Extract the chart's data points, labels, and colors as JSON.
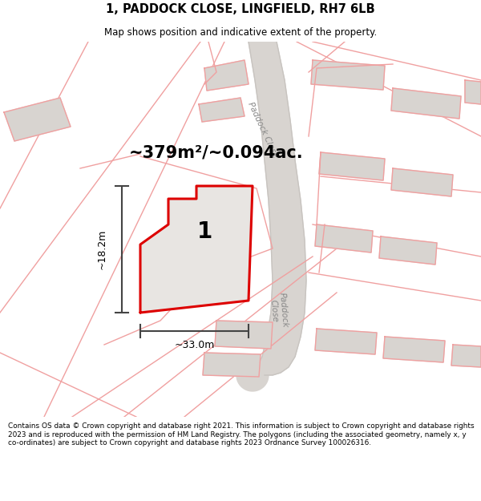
{
  "title": "1, PADDOCK CLOSE, LINGFIELD, RH7 6LB",
  "subtitle": "Map shows position and indicative extent of the property.",
  "footer": "Contains OS data © Crown copyright and database right 2021. This information is subject to Crown copyright and database rights 2023 and is reproduced with the permission of HM Land Registry. The polygons (including the associated geometry, namely x, y co-ordinates) are subject to Crown copyright and database rights 2023 Ordnance Survey 100026316.",
  "area_text": "~379m²/~0.094ac.",
  "plot_label": "1",
  "dim_width": "~33.0m",
  "dim_height": "~18.2m",
  "bg_color": "#ffffff",
  "map_bg": "#ffffff",
  "plot_color": "#dd0000",
  "plot_fill": "#e8e4e0",
  "road_color": "#d8d4d0",
  "road_edge": "#c8c4c0",
  "building_fill": "#d8d4d0",
  "building_line": "#f0a0a0",
  "line_color": "#f0a0a0",
  "road_label_color": "#888888",
  "dim_line_color": "#444444"
}
